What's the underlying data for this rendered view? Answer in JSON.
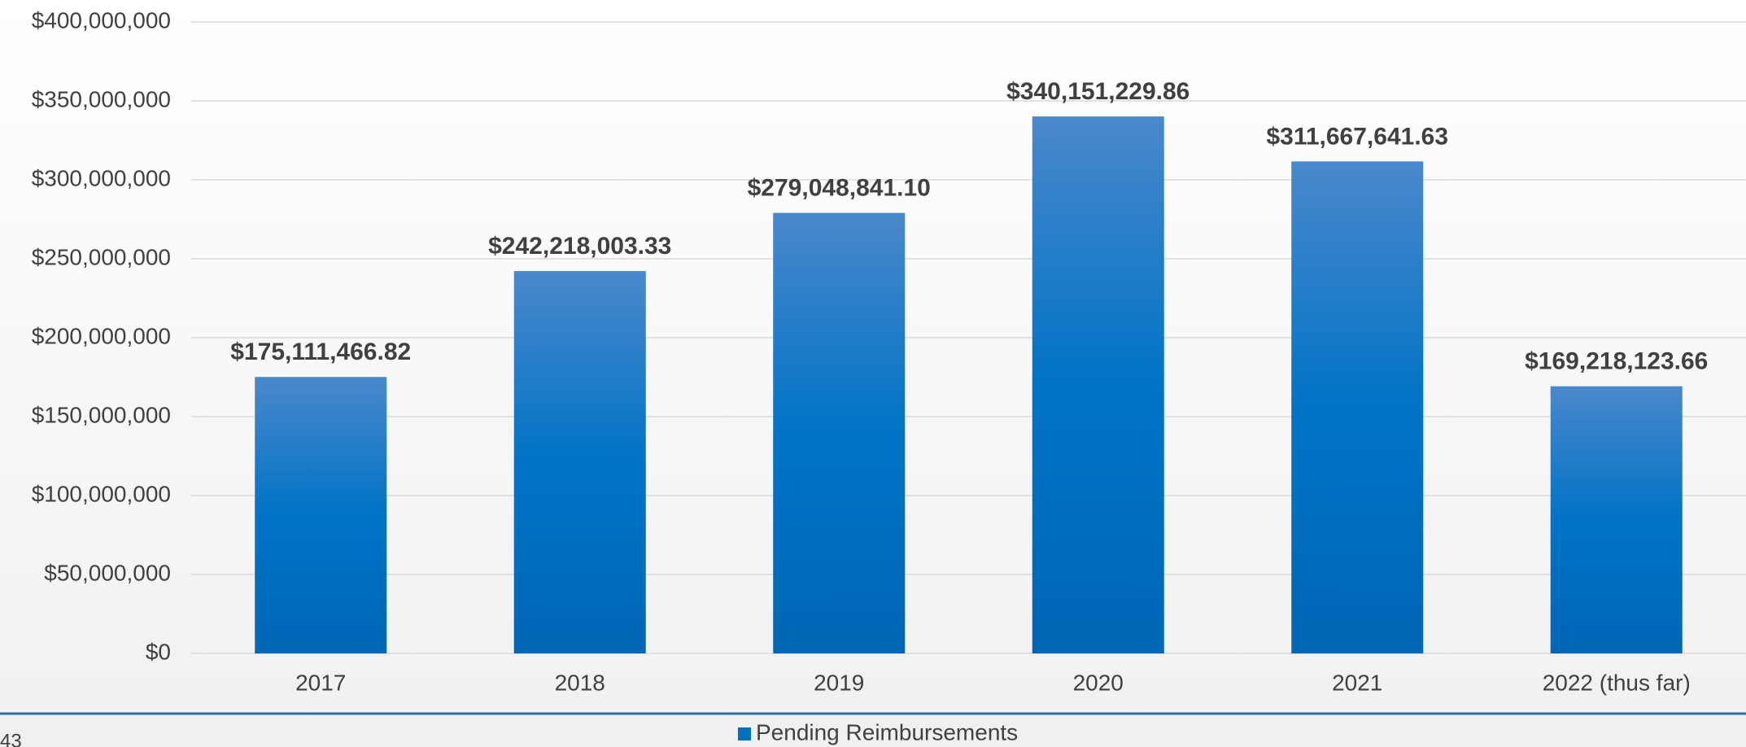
{
  "chart_data": {
    "type": "bar",
    "categories": [
      "2017",
      "2018",
      "2019",
      "2020",
      "2021",
      "2022 (thus far)"
    ],
    "series": [
      {
        "name": "Pending Reimbursements",
        "color": "#0070c0",
        "values": [
          175111466.82,
          242218003.33,
          279048841.1,
          340151229.86,
          311667641.63,
          169218123.66
        ],
        "value_labels": [
          "$175,111,466.82",
          "$242,218,003.33",
          "$279,048,841.10",
          "$340,151,229.86",
          "$311,667,641.63",
          "$169,218,123.66"
        ]
      }
    ],
    "ylim": [
      0,
      400000000
    ],
    "yticks": [
      {
        "value": 0,
        "label": "$0"
      },
      {
        "value": 50000000,
        "label": "$50,000,000"
      },
      {
        "value": 100000000,
        "label": "$100,000,000"
      },
      {
        "value": 150000000,
        "label": "$150,000,000"
      },
      {
        "value": 200000000,
        "label": "$200,000,000"
      },
      {
        "value": 250000000,
        "label": "$250,000,000"
      },
      {
        "value": 300000000,
        "label": "$300,000,000"
      },
      {
        "value": 350000000,
        "label": "$350,000,000"
      },
      {
        "value": 400000000,
        "label": "$400,000,000"
      }
    ],
    "grid": true,
    "legend": "bottom"
  },
  "page_number": "43"
}
